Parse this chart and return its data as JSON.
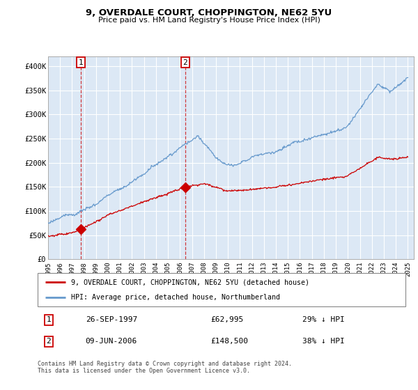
{
  "title1": "9, OVERDALE COURT, CHOPPINGTON, NE62 5YU",
  "title2": "Price paid vs. HM Land Registry's House Price Index (HPI)",
  "ylabel_ticks": [
    "£0",
    "£50K",
    "£100K",
    "£150K",
    "£200K",
    "£250K",
    "£300K",
    "£350K",
    "£400K"
  ],
  "ytick_vals": [
    0,
    50000,
    100000,
    150000,
    200000,
    250000,
    300000,
    350000,
    400000
  ],
  "ylim": [
    0,
    420000
  ],
  "xlim_start": 1995.0,
  "xlim_end": 2025.5,
  "sale1_date": 1997.74,
  "sale1_price": 62995,
  "sale1_label": "1",
  "sale1_info": "26-SEP-1997",
  "sale1_price_str": "£62,995",
  "sale1_hpi": "29% ↓ HPI",
  "sale2_date": 2006.44,
  "sale2_price": 148500,
  "sale2_label": "2",
  "sale2_info": "09-JUN-2006",
  "sale2_price_str": "£148,500",
  "sale2_hpi": "38% ↓ HPI",
  "red_line_color": "#cc0000",
  "blue_line_color": "#6699cc",
  "grid_color": "#cccccc",
  "bg_color": "#dce8f5",
  "legend_line1": "9, OVERDALE COURT, CHOPPINGTON, NE62 5YU (detached house)",
  "legend_line2": "HPI: Average price, detached house, Northumberland",
  "footnote": "Contains HM Land Registry data © Crown copyright and database right 2024.\nThis data is licensed under the Open Government Licence v3.0.",
  "xtick_years": [
    1995,
    1996,
    1997,
    1998,
    1999,
    2000,
    2001,
    2002,
    2003,
    2004,
    2005,
    2006,
    2007,
    2008,
    2009,
    2010,
    2011,
    2012,
    2013,
    2014,
    2015,
    2016,
    2017,
    2018,
    2019,
    2020,
    2021,
    2022,
    2023,
    2024,
    2025
  ]
}
